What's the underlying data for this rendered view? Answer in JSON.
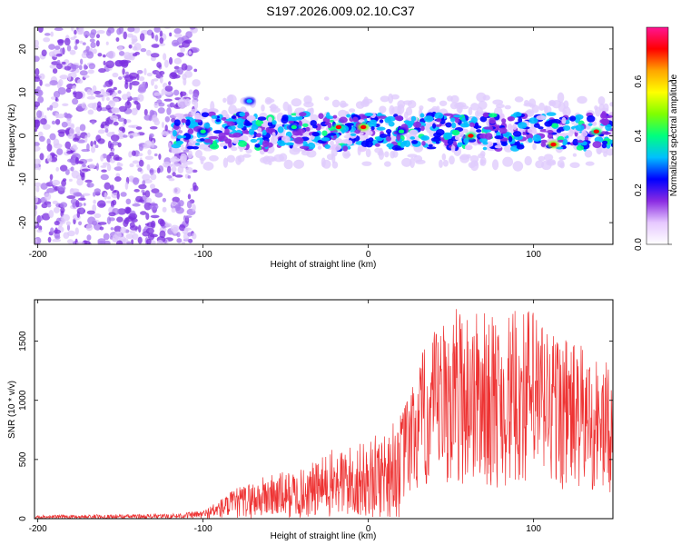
{
  "title": "S197.2026.009.02.10.C37",
  "chart_data": [
    {
      "type": "heatmap",
      "xlabel": "Height of straight line (km)",
      "ylabel": "Frequency (Hz)",
      "xlim": [
        -202,
        148
      ],
      "ylim": [
        -25,
        25
      ],
      "xticks": [
        -200,
        -100,
        0,
        100
      ],
      "yticks": [
        -20,
        -10,
        0,
        10,
        20
      ],
      "colorbar": {
        "label": "Normalized spectral amplitude",
        "range": [
          0,
          0.8
        ],
        "ticks": [
          "0.0",
          "0.2",
          "0.4",
          "0.6"
        ],
        "colors": [
          "#ffffff",
          "#e6c8ff",
          "#8a2be2",
          "#0000ff",
          "#00bfff",
          "#00ff7f",
          "#7fff00",
          "#ffff00",
          "#ffa500",
          "#ff0000",
          "#ff1493"
        ]
      },
      "description_band": {
        "center_hz": 1,
        "half_width_hz": 4,
        "noise_region_x": [
          -202,
          -112
        ]
      },
      "hotspots": [
        {
          "x": -100,
          "y": 1,
          "v": 0.42
        },
        {
          "x": -72,
          "y": 8,
          "v": 0.35
        },
        {
          "x": -45,
          "y": 2,
          "v": 0.38
        },
        {
          "x": -18,
          "y": 2,
          "v": 0.72
        },
        {
          "x": -3,
          "y": 2,
          "v": 0.74
        },
        {
          "x": 20,
          "y": 1,
          "v": 0.4
        },
        {
          "x": 62,
          "y": 0,
          "v": 0.7
        },
        {
          "x": 112,
          "y": -2,
          "v": 0.75
        },
        {
          "x": 138,
          "y": 1,
          "v": 0.68
        }
      ]
    },
    {
      "type": "line",
      "xlabel": "Height of straight line (km)",
      "ylabel": "SNR (10 * v/v)",
      "xlim": [
        -202,
        148
      ],
      "ylim": [
        0,
        1850
      ],
      "xticks": [
        -200,
        -100,
        0,
        100
      ],
      "yticks": [
        0,
        500,
        1000,
        1500
      ],
      "color": "#ee3333",
      "envelope": [
        {
          "x": -202,
          "y": 30
        },
        {
          "x": -120,
          "y": 40
        },
        {
          "x": -100,
          "y": 70
        },
        {
          "x": -80,
          "y": 260
        },
        {
          "x": -60,
          "y": 380
        },
        {
          "x": -40,
          "y": 420
        },
        {
          "x": -20,
          "y": 600
        },
        {
          "x": 0,
          "y": 650
        },
        {
          "x": 20,
          "y": 900
        },
        {
          "x": 35,
          "y": 1500
        },
        {
          "x": 55,
          "y": 1840
        },
        {
          "x": 80,
          "y": 1700
        },
        {
          "x": 97,
          "y": 1820
        },
        {
          "x": 120,
          "y": 1550
        },
        {
          "x": 148,
          "y": 1300
        }
      ]
    }
  ]
}
